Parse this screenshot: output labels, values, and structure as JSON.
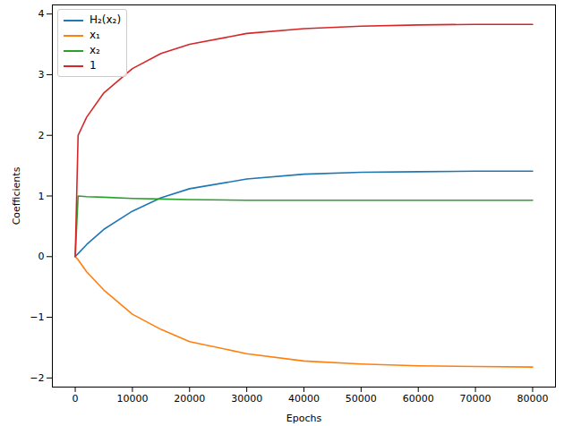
{
  "chart_data": {
    "type": "line",
    "x_label": "Epochs",
    "y_label": "Coefficients",
    "x": [
      0,
      500,
      2000,
      5000,
      10000,
      15000,
      20000,
      30000,
      40000,
      50000,
      60000,
      70000,
      80000
    ],
    "series": [
      {
        "name": "H₂(x₂)",
        "color": "#1f77b4",
        "values": [
          0,
          0.05,
          0.2,
          0.45,
          0.75,
          0.97,
          1.12,
          1.28,
          1.36,
          1.39,
          1.4,
          1.41,
          1.41
        ]
      },
      {
        "name": "x₁",
        "color": "#ff7f0e",
        "values": [
          0,
          -0.05,
          -0.25,
          -0.55,
          -0.95,
          -1.2,
          -1.4,
          -1.6,
          -1.72,
          -1.77,
          -1.8,
          -1.81,
          -1.82
        ]
      },
      {
        "name": "x₂",
        "color": "#2ca02c",
        "values": [
          0,
          1.0,
          0.99,
          0.98,
          0.96,
          0.95,
          0.94,
          0.93,
          0.93,
          0.93,
          0.93,
          0.93,
          0.93
        ]
      },
      {
        "name": "1",
        "color": "#d62728",
        "values": [
          0,
          2.0,
          2.3,
          2.7,
          3.1,
          3.35,
          3.5,
          3.68,
          3.76,
          3.8,
          3.82,
          3.83,
          3.83
        ]
      }
    ],
    "xlim": [
      -4000,
      84000
    ],
    "xticks": [
      0,
      10000,
      20000,
      30000,
      40000,
      50000,
      60000,
      70000,
      80000
    ],
    "ylim": [
      -2.15,
      4.15
    ],
    "yticks": [
      -2,
      -1,
      0,
      1,
      2,
      3,
      4
    ],
    "grid": false,
    "legend": "upper left"
  }
}
